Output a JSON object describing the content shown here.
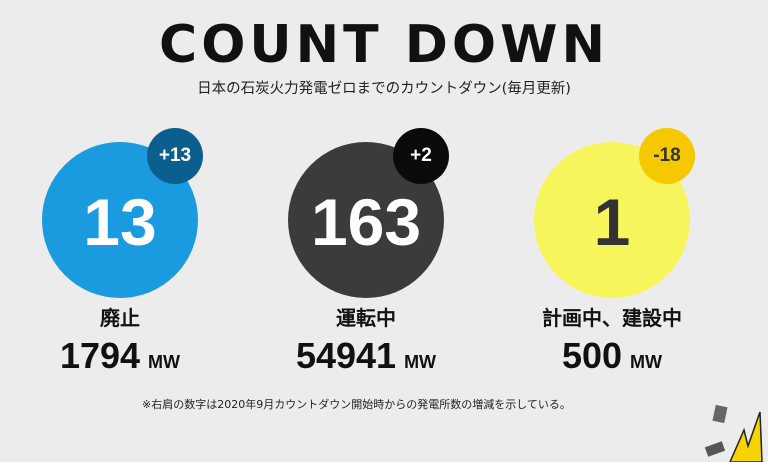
{
  "header": {
    "title": "COUNT DOWN",
    "subtitle": "日本の石炭火力発電ゼロまでのカウントダウン(毎月更新)"
  },
  "cards": [
    {
      "count": "13",
      "change": "+13",
      "label": "廃止",
      "capacity": "1794",
      "unit": "MW",
      "color": "#1a9be0",
      "badge_color": "#0b5f8e",
      "text_color": "#ffffff",
      "badge_text": "#ffffff"
    },
    {
      "count": "163",
      "change": "+2",
      "label": "運転中",
      "capacity": "54941",
      "unit": "MW",
      "color": "#3b3b3b",
      "badge_color": "#0a0a0a",
      "text_color": "#ffffff",
      "badge_text": "#ffffff"
    },
    {
      "count": "1",
      "change": "-18",
      "label": "計画中、建設中",
      "capacity": "500",
      "unit": "MW",
      "color": "#f6f55c",
      "badge_color": "#f5c800",
      "text_color": "#333333",
      "badge_text": "#333333"
    }
  ],
  "footnote": "※右肩の数字は2020年9月カウントダウン開始時からの発電所数の増減を示している。"
}
